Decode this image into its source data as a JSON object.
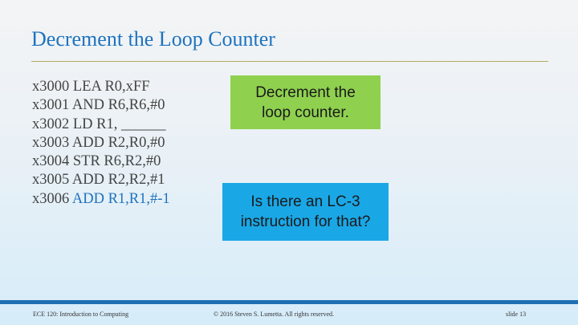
{
  "slide": {
    "title": "Decrement the Loop Counter",
    "code_lines": [
      {
        "addr": "x3000",
        "instr": "LEA R0,xFF",
        "highlight": false
      },
      {
        "addr": "x3001",
        "instr": "AND R6,R6,#0",
        "highlight": false
      },
      {
        "addr": "x3002",
        "instr": "LD R1, ______",
        "highlight": false
      },
      {
        "addr": "x3003",
        "instr": "ADD R2,R0,#0",
        "highlight": false
      },
      {
        "addr": "x3004",
        "instr": "STR R6,R2,#0",
        "highlight": false
      },
      {
        "addr": "x3005",
        "instr": "ADD R2,R2,#1",
        "highlight": false
      },
      {
        "addr": "x3006",
        "instr": "ADD R1,R1,#-1",
        "highlight": true
      }
    ],
    "callout_green": {
      "line1": "Decrement the",
      "line2": "loop counter."
    },
    "callout_blue": {
      "line1": "Is there an LC-3",
      "line2": "instruction for that?"
    }
  },
  "footer": {
    "course": "ECE 120: Introduction to Computing",
    "copyright": "© 2016 Steven S. Lumetta.  All rights reserved.",
    "slide_number": "slide 13"
  },
  "colors": {
    "title": "#1e73be",
    "highlight": "#1e73be",
    "code": "#444444",
    "green_callout": "#8fd14f",
    "blue_callout": "#1aa7e6",
    "footer_band": "#1e6fb3",
    "title_rule": "#b5ab5a"
  }
}
